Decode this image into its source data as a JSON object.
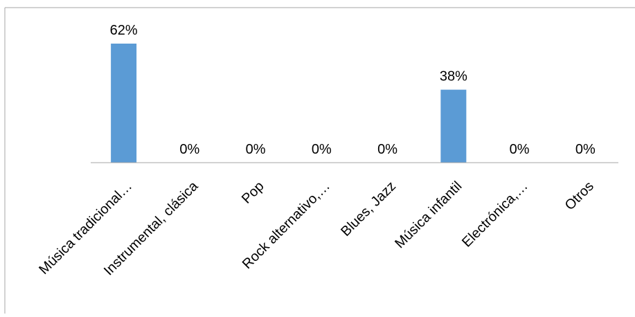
{
  "chart_data": {
    "type": "bar",
    "categories": [
      "Música tradicional…",
      "Instrumental, clásica",
      "Pop",
      "Rock alternativo,…",
      "Blues, Jazz",
      "Música infantil",
      "Electrónica,…",
      "Otros"
    ],
    "values": [
      62,
      0,
      0,
      0,
      0,
      38,
      0,
      0
    ],
    "data_labels": [
      "62%",
      "0%",
      "0%",
      "0%",
      "0%",
      "38%",
      "0%",
      "0%"
    ],
    "ylim": [
      0,
      70
    ],
    "grid": false,
    "legend": "none",
    "bar_color": "#5b9bd5",
    "axis_color": "#a6a6a6",
    "label_color": "#000000"
  }
}
